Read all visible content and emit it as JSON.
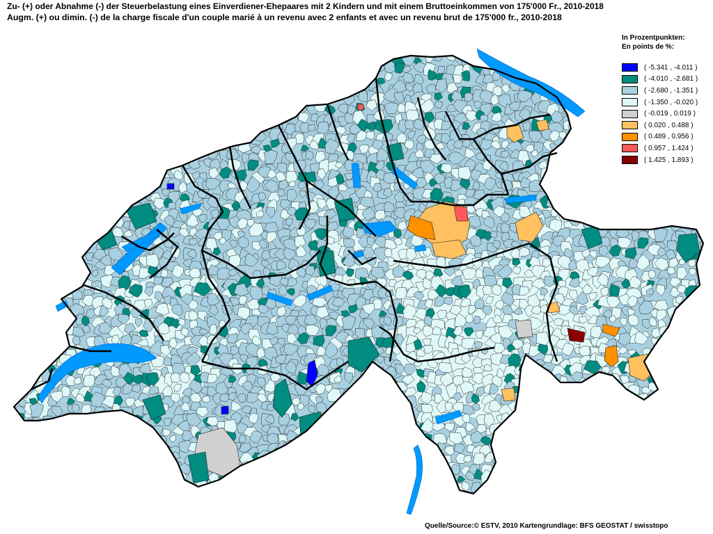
{
  "title": {
    "de": "Zu- (+) oder Abnahme (-) der Steuerbelastung eines Einverdiener-Ehepaares mit 2 Kindern und mit einem Bruttoeinkommen von 175'000 Fr., 2010-2018",
    "fr": "Augm. (+) ou dimin. (-) de la charge fiscale d'un couple marié à un revenu avec 2 enfants et avec un revenu brut de 175'000 fr., 2010-2018"
  },
  "legend": {
    "heading_de": "In Prozentpunkten:",
    "heading_fr": "En points de %:",
    "items": [
      {
        "label": "( -5.341 , -4.011 )",
        "color": "#0000ff"
      },
      {
        "label": "( -4.010 , -2.681 )",
        "color": "#008c80"
      },
      {
        "label": "( -2.680 , -1.351 )",
        "color": "#a8d0e0"
      },
      {
        "label": "( -1.350 , -0.020 )",
        "color": "#e0f8f8"
      },
      {
        "label": "( -0.019 , 0.019 )",
        "color": "#d0d0d0"
      },
      {
        "label": "( 0.020 , 0.488 )",
        "color": "#ffc060"
      },
      {
        "label": "( 0.489 , 0.956 )",
        "color": "#ff9000"
      },
      {
        "label": "( 0.957 , 1.424 )",
        "color": "#ff5858"
      },
      {
        "label": "( 1.425 , 1.893 )",
        "color": "#880000"
      }
    ]
  },
  "colors": {
    "lake": "#0099ff",
    "canton_border": "#000000",
    "municipality_border": "#1a1a1a"
  },
  "source": "Quelle/Source:© ESTV, 2010 Kartengrundlage: BFS GEOSTAT / swisstopo"
}
